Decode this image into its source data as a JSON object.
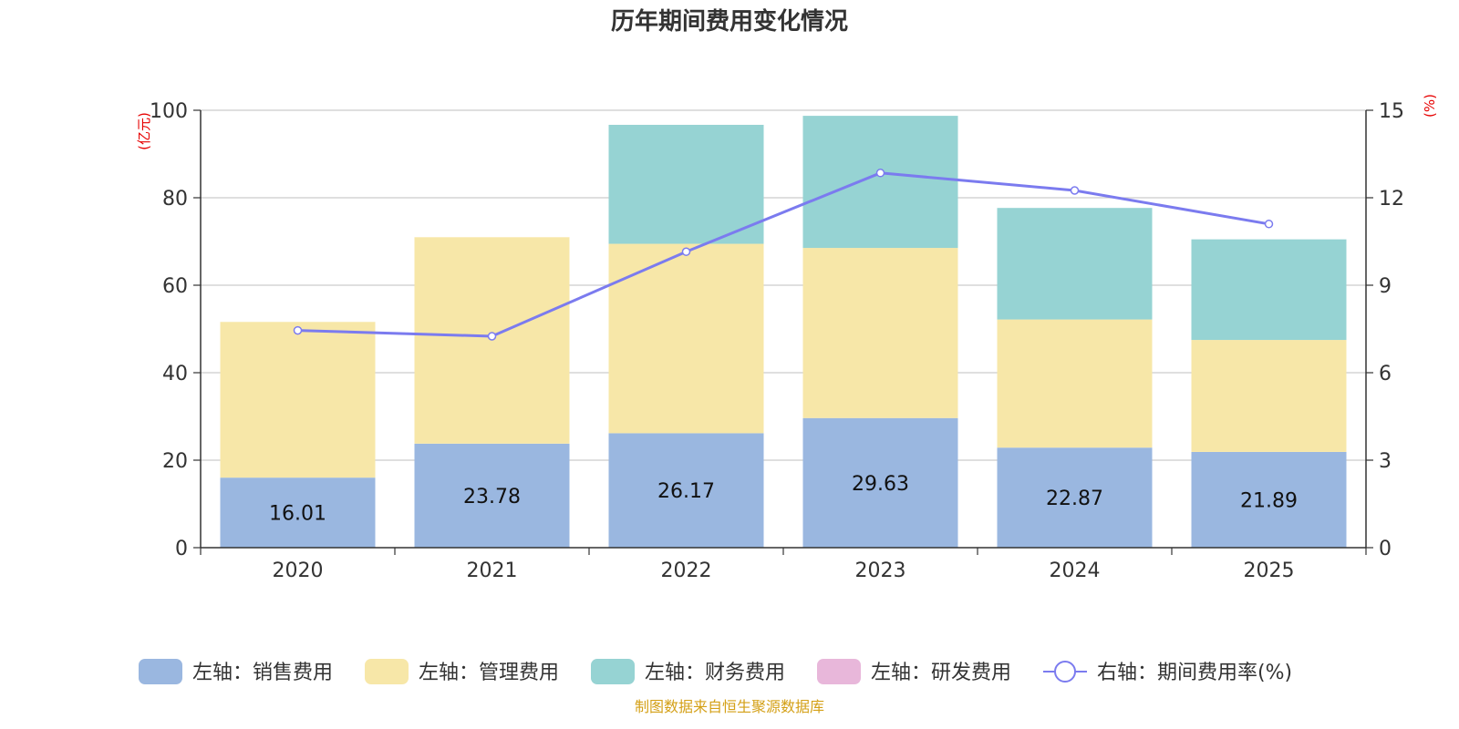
{
  "chart_data": {
    "type": "bar",
    "stacked": true,
    "title": "历年期间费用变化情况",
    "categories": [
      "2020",
      "2021",
      "2022",
      "2023",
      "2024",
      "2025"
    ],
    "left_axis": {
      "unit": "(亿元)",
      "ylim": [
        0,
        100
      ],
      "ticks": [
        "0",
        "20",
        "40",
        "60",
        "80",
        "100"
      ]
    },
    "right_axis": {
      "unit": "(%)",
      "ylim": [
        0,
        15
      ],
      "ticks": [
        "0",
        "3",
        "6",
        "9",
        "12",
        "15"
      ]
    },
    "series": [
      {
        "name": "左轴：销售费用",
        "type": "bar",
        "axis": "left",
        "color": "#9ab7e0",
        "values": [
          16.01,
          23.78,
          26.17,
          29.63,
          22.87,
          21.89
        ],
        "labels": [
          "16.01",
          "23.78",
          "26.17",
          "29.63",
          "22.87",
          "21.89"
        ]
      },
      {
        "name": "左轴：管理费用",
        "type": "bar",
        "axis": "left",
        "color": "#f7e7a8",
        "values": [
          35.6,
          47.2,
          43.3,
          38.9,
          29.3,
          25.6
        ]
      },
      {
        "name": "左轴：财务费用",
        "type": "bar",
        "axis": "left",
        "color": "#96d3d3",
        "values": [
          0,
          0,
          27.2,
          30.2,
          25.5,
          23.0
        ]
      },
      {
        "name": "左轴：研发费用",
        "type": "bar",
        "axis": "left",
        "color": "#e8b7da",
        "values": [
          0,
          0,
          0,
          0,
          0,
          0
        ]
      },
      {
        "name": "右轴：期间费用率(%)",
        "type": "line",
        "axis": "right",
        "color": "#7b7bef",
        "values": [
          7.45,
          7.25,
          10.15,
          12.85,
          12.25,
          11.1
        ]
      }
    ],
    "grid": true,
    "legend_position": "bottom"
  },
  "colors": {
    "axis_unit": "#e60000",
    "source": "#d4a017",
    "grid": "#cccccc"
  },
  "source_note": "制图数据来自恒生聚源数据库"
}
